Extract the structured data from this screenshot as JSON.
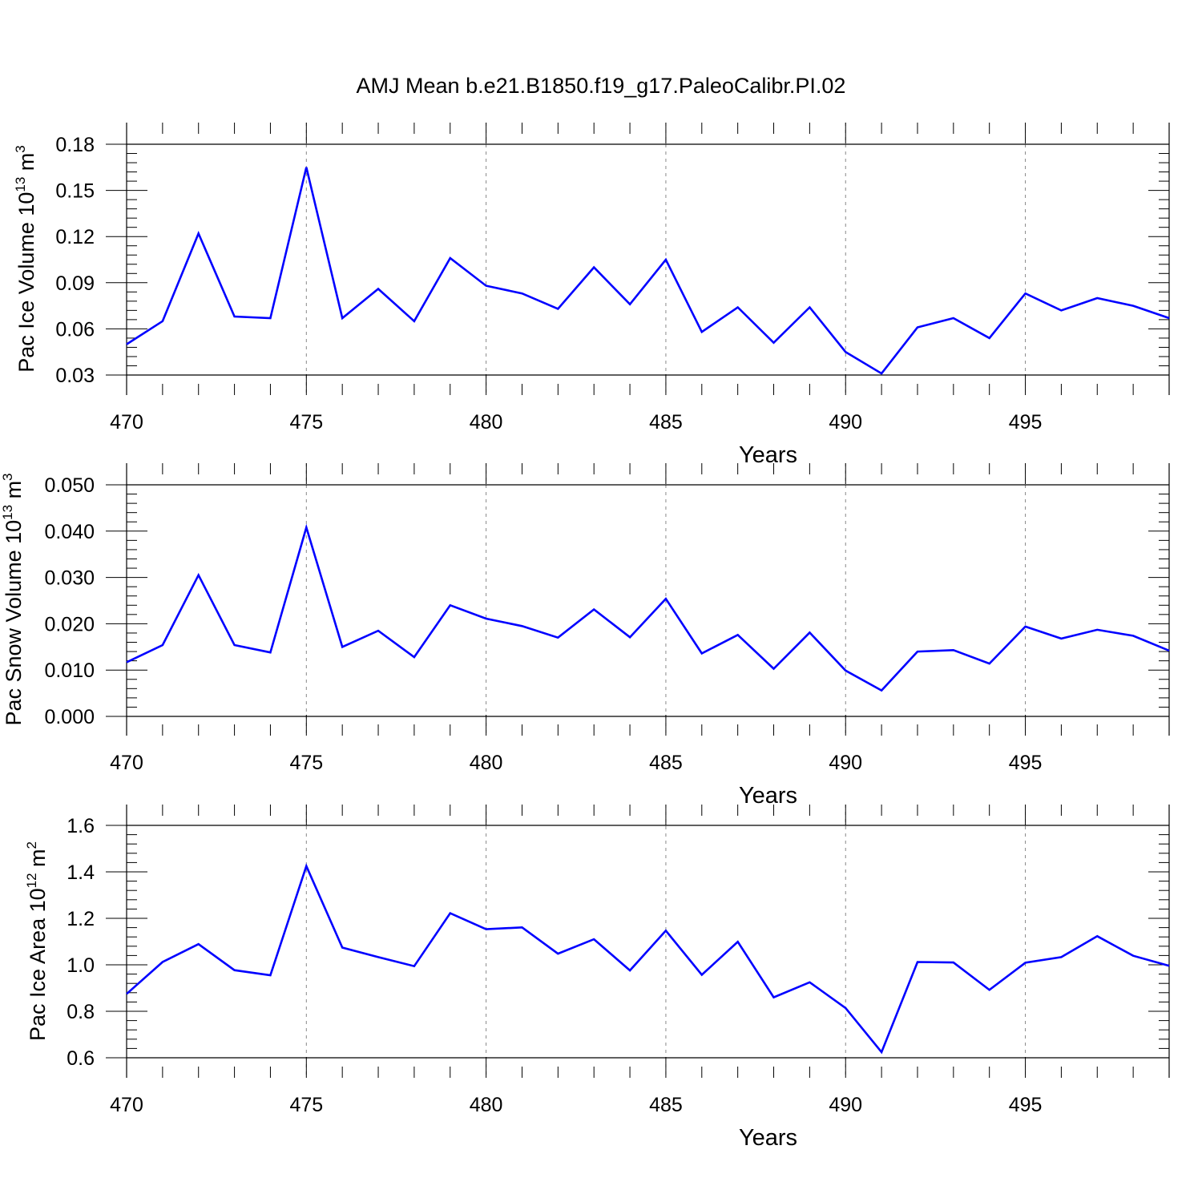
{
  "title": "AMJ Mean b.e21.B1850.f19_g17.PaleoCalibr.PI.02",
  "colors": {
    "line": "#0000ff",
    "axis": "#000000",
    "grid": "#888888"
  },
  "chart_data": [
    {
      "type": "line",
      "xlabel": "Years",
      "ylabel_base": "Pac Ice Volume 10",
      "ylabel_exp": "13",
      "ylabel_unit": " m",
      "ylabel_unit_exp": "3",
      "xlim": [
        470,
        499
      ],
      "ylim": [
        0.03,
        0.18
      ],
      "xticks": [
        470,
        475,
        480,
        485,
        490,
        495
      ],
      "yticks": [
        0.03,
        0.06,
        0.09,
        0.12,
        0.15,
        0.18
      ],
      "ytick_labels": [
        "0.03",
        "0.06",
        "0.09",
        "0.12",
        "0.15",
        "0.18"
      ],
      "grid_x": true,
      "x": [
        470,
        471,
        472,
        473,
        474,
        475,
        476,
        477,
        478,
        479,
        480,
        481,
        482,
        483,
        484,
        485,
        486,
        487,
        488,
        489,
        490,
        491,
        492,
        493,
        494,
        495,
        496,
        497,
        498,
        499
      ],
      "y": [
        0.05,
        0.065,
        0.122,
        0.068,
        0.067,
        0.165,
        0.067,
        0.086,
        0.065,
        0.106,
        0.088,
        0.083,
        0.073,
        0.1,
        0.076,
        0.105,
        0.058,
        0.074,
        0.051,
        0.074,
        0.045,
        0.031,
        0.061,
        0.067,
        0.054,
        0.083,
        0.072,
        0.08,
        0.075,
        0.067
      ]
    },
    {
      "type": "line",
      "xlabel": "Years",
      "ylabel_base": "Pac Snow Volume 10",
      "ylabel_exp": "13",
      "ylabel_unit": " m",
      "ylabel_unit_exp": "3",
      "xlim": [
        470,
        499
      ],
      "ylim": [
        0.0,
        0.05
      ],
      "xticks": [
        470,
        475,
        480,
        485,
        490,
        495
      ],
      "yticks": [
        0.0,
        0.01,
        0.02,
        0.03,
        0.04,
        0.05
      ],
      "ytick_labels": [
        "0.000",
        "0.010",
        "0.020",
        "0.030",
        "0.040",
        "0.050"
      ],
      "grid_x": true,
      "x": [
        470,
        471,
        472,
        473,
        474,
        475,
        476,
        477,
        478,
        479,
        480,
        481,
        482,
        483,
        484,
        485,
        486,
        487,
        488,
        489,
        490,
        491,
        492,
        493,
        494,
        495,
        496,
        497,
        498,
        499
      ],
      "y": [
        0.0117,
        0.0154,
        0.0305,
        0.0154,
        0.0138,
        0.0408,
        0.015,
        0.0185,
        0.0128,
        0.024,
        0.0211,
        0.0195,
        0.017,
        0.0231,
        0.0171,
        0.0254,
        0.0136,
        0.0176,
        0.0103,
        0.0181,
        0.0099,
        0.0056,
        0.014,
        0.0143,
        0.0114,
        0.0194,
        0.0168,
        0.0187,
        0.0174,
        0.0142
      ]
    },
    {
      "type": "line",
      "xlabel": "Years",
      "ylabel_base": "Pac Ice Area 10",
      "ylabel_exp": "12",
      "ylabel_unit": " m",
      "ylabel_unit_exp": "2",
      "xlim": [
        470,
        499
      ],
      "ylim": [
        0.6,
        1.6
      ],
      "xticks": [
        470,
        475,
        480,
        485,
        490,
        495
      ],
      "yticks": [
        0.6,
        0.8,
        1.0,
        1.2,
        1.4,
        1.6
      ],
      "ytick_labels": [
        "0.6",
        "0.8",
        "1.0",
        "1.2",
        "1.4",
        "1.6"
      ],
      "grid_x": true,
      "x": [
        470,
        471,
        472,
        473,
        474,
        475,
        476,
        477,
        478,
        479,
        480,
        481,
        482,
        483,
        484,
        485,
        486,
        487,
        488,
        489,
        490,
        491,
        492,
        493,
        494,
        495,
        496,
        497,
        498,
        499
      ],
      "y": [
        0.875,
        1.012,
        1.089,
        0.977,
        0.955,
        1.425,
        1.074,
        1.033,
        0.994,
        1.222,
        1.153,
        1.161,
        1.048,
        1.11,
        0.976,
        1.147,
        0.957,
        1.099,
        0.86,
        0.925,
        0.814,
        0.624,
        1.012,
        1.01,
        0.892,
        1.009,
        1.033,
        1.123,
        1.039,
        0.996
      ]
    }
  ]
}
